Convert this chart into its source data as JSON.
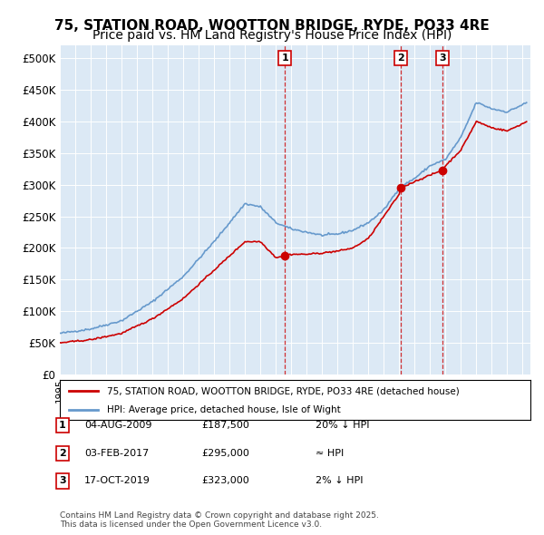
{
  "title": "75, STATION ROAD, WOOTTON BRIDGE, RYDE, PO33 4RE",
  "subtitle": "Price paid vs. HM Land Registry's House Price Index (HPI)",
  "ylabel": "",
  "ylim": [
    0,
    520000
  ],
  "yticks": [
    0,
    50000,
    100000,
    150000,
    200000,
    250000,
    300000,
    350000,
    400000,
    450000,
    500000
  ],
  "ytick_labels": [
    "£0",
    "£50K",
    "£100K",
    "£150K",
    "£200K",
    "£250K",
    "£300K",
    "£350K",
    "£400K",
    "£450K",
    "£500K"
  ],
  "xlim_start": 1995.0,
  "xlim_end": 2025.5,
  "background_color": "#dce9f5",
  "plot_bg_color": "#dce9f5",
  "sales": [
    {
      "index": 1,
      "date_num": 2009.59,
      "price": 187500,
      "label": "1",
      "date_str": "04-AUG-2009",
      "price_str": "£187,500",
      "vs_hpi": "20% ↓ HPI"
    },
    {
      "index": 2,
      "date_num": 2017.09,
      "price": 295000,
      "label": "2",
      "date_str": "03-FEB-2017",
      "price_str": "£295,000",
      "vs_hpi": "≈ HPI"
    },
    {
      "index": 3,
      "date_num": 2019.79,
      "price": 323000,
      "label": "3",
      "date_str": "17-OCT-2019",
      "price_str": "£323,000",
      "vs_hpi": "2% ↓ HPI"
    }
  ],
  "legend_line1": "75, STATION ROAD, WOOTTON BRIDGE, RYDE, PO33 4RE (detached house)",
  "legend_line2": "HPI: Average price, detached house, Isle of Wight",
  "footnote": "Contains HM Land Registry data © Crown copyright and database right 2025.\nThis data is licensed under the Open Government Licence v3.0.",
  "red_color": "#cc0000",
  "blue_color": "#6699cc",
  "title_fontsize": 11,
  "subtitle_fontsize": 10
}
